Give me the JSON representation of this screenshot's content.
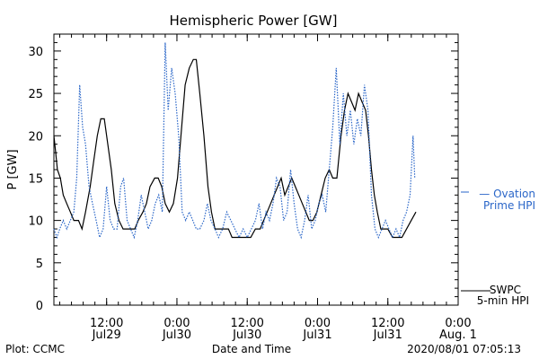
{
  "chart_data": {
    "type": "line",
    "title": "Hemispheric Power [GW]",
    "xlabel": "Date and Time",
    "ylabel": "P [GW]",
    "ylim": [
      0,
      32
    ],
    "xlim_hours": [
      0,
      69
    ],
    "yticks": [
      0,
      5,
      10,
      15,
      20,
      25,
      30
    ],
    "xticks": [
      {
        "t": 9,
        "top": "12:00",
        "bottom": "Jul29"
      },
      {
        "t": 21,
        "top": "0:00",
        "bottom": "Jul30"
      },
      {
        "t": 33,
        "top": "12:00",
        "bottom": "Jul30"
      },
      {
        "t": 45,
        "top": "0:00",
        "bottom": "Jul31"
      },
      {
        "t": 57,
        "top": "12:00",
        "bottom": "Jul31"
      },
      {
        "t": 69,
        "top": "0:00",
        "bottom": "Aug. 1"
      }
    ],
    "series": [
      {
        "name": "SWPC 5-min HPI",
        "color": "#000000",
        "style": "solid",
        "points": [
          [
            0,
            20
          ],
          [
            0.3,
            18
          ],
          [
            0.6,
            16
          ],
          [
            1.1,
            15
          ],
          [
            1.6,
            13
          ],
          [
            2.2,
            12
          ],
          [
            2.8,
            11
          ],
          [
            3.4,
            10
          ],
          [
            4.2,
            10
          ],
          [
            4.8,
            9
          ],
          [
            5.4,
            11
          ],
          [
            6.2,
            14
          ],
          [
            6.8,
            17
          ],
          [
            7.4,
            20
          ],
          [
            8,
            22
          ],
          [
            8.6,
            22
          ],
          [
            9.2,
            19
          ],
          [
            9.8,
            16
          ],
          [
            10.4,
            12
          ],
          [
            11.1,
            10
          ],
          [
            11.8,
            9
          ],
          [
            12.6,
            9
          ],
          [
            13.2,
            9
          ],
          [
            13.8,
            9
          ],
          [
            14.4,
            10
          ],
          [
            15.2,
            11
          ],
          [
            15.8,
            12
          ],
          [
            16.4,
            14
          ],
          [
            17.2,
            15
          ],
          [
            17.8,
            15
          ],
          [
            18.4,
            14
          ],
          [
            19,
            12
          ],
          [
            19.7,
            11
          ],
          [
            20.4,
            12
          ],
          [
            21.1,
            15
          ],
          [
            21.8,
            21
          ],
          [
            22.4,
            26
          ],
          [
            23.1,
            28
          ],
          [
            23.8,
            29
          ],
          [
            24.3,
            29
          ],
          [
            24.9,
            25
          ],
          [
            25.6,
            20
          ],
          [
            26.3,
            14
          ],
          [
            26.9,
            11
          ],
          [
            27.5,
            9
          ],
          [
            28.2,
            9
          ],
          [
            29,
            9
          ],
          [
            29.8,
            9
          ],
          [
            30.4,
            8
          ],
          [
            31.2,
            8
          ],
          [
            32,
            8
          ],
          [
            32.8,
            8
          ],
          [
            33.6,
            8
          ],
          [
            34.4,
            9
          ],
          [
            35.2,
            9
          ],
          [
            35.8,
            10
          ],
          [
            36.4,
            11
          ],
          [
            37,
            12
          ],
          [
            37.6,
            13
          ],
          [
            38.2,
            14
          ],
          [
            38.8,
            15
          ],
          [
            39.4,
            13
          ],
          [
            40,
            14
          ],
          [
            40.6,
            15
          ],
          [
            41.2,
            14
          ],
          [
            41.8,
            13
          ],
          [
            42.4,
            12
          ],
          [
            43,
            11
          ],
          [
            43.6,
            10
          ],
          [
            44.2,
            10
          ],
          [
            44.9,
            11
          ],
          [
            45.6,
            13
          ],
          [
            46.3,
            15
          ],
          [
            47,
            16
          ],
          [
            47.6,
            15
          ],
          [
            48.3,
            15
          ],
          [
            49,
            20
          ],
          [
            49.6,
            23
          ],
          [
            50.2,
            25
          ],
          [
            50.8,
            24
          ],
          [
            51.4,
            23
          ],
          [
            52,
            25
          ],
          [
            52.6,
            24
          ],
          [
            53.2,
            23
          ],
          [
            53.7,
            20
          ],
          [
            54.2,
            16
          ],
          [
            54.7,
            13
          ],
          [
            55.2,
            11
          ],
          [
            55.8,
            9
          ],
          [
            56.4,
            9
          ],
          [
            57,
            9
          ],
          [
            57.8,
            8
          ],
          [
            58.6,
            8
          ],
          [
            59.4,
            8
          ],
          [
            60.2,
            9
          ],
          [
            61,
            10
          ],
          [
            61.8,
            11
          ]
        ]
      },
      {
        "name": "Ovation Prime HPI",
        "color": "#2a66c8",
        "style": "dotted",
        "points": [
          [
            0,
            9
          ],
          [
            0.5,
            8
          ],
          [
            1,
            9
          ],
          [
            1.6,
            10
          ],
          [
            2.2,
            9
          ],
          [
            2.8,
            10
          ],
          [
            3.4,
            11
          ],
          [
            3.9,
            15
          ],
          [
            4.4,
            26
          ],
          [
            4.9,
            21
          ],
          [
            5.4,
            19
          ],
          [
            6,
            14
          ],
          [
            6.6,
            12
          ],
          [
            7.2,
            10
          ],
          [
            7.8,
            8
          ],
          [
            8.4,
            9
          ],
          [
            9,
            14
          ],
          [
            9.6,
            10
          ],
          [
            10.2,
            9
          ],
          [
            10.8,
            9
          ],
          [
            11.4,
            14
          ],
          [
            11.9,
            15
          ],
          [
            12.5,
            10
          ],
          [
            13.1,
            9
          ],
          [
            13.7,
            8
          ],
          [
            14.3,
            10
          ],
          [
            14.9,
            13
          ],
          [
            15.5,
            11
          ],
          [
            16.1,
            9
          ],
          [
            16.7,
            10
          ],
          [
            17.3,
            12
          ],
          [
            17.9,
            13
          ],
          [
            18.5,
            11
          ],
          [
            19,
            31
          ],
          [
            19.5,
            23
          ],
          [
            20.1,
            28
          ],
          [
            20.7,
            25
          ],
          [
            21.3,
            20
          ],
          [
            21.9,
            11
          ],
          [
            22.5,
            10
          ],
          [
            23.1,
            11
          ],
          [
            23.7,
            10
          ],
          [
            24.3,
            9
          ],
          [
            24.9,
            9
          ],
          [
            25.6,
            10
          ],
          [
            26.2,
            12
          ],
          [
            26.8,
            10
          ],
          [
            27.5,
            9
          ],
          [
            28.1,
            8
          ],
          [
            28.8,
            9
          ],
          [
            29.5,
            11
          ],
          [
            30.2,
            10
          ],
          [
            30.9,
            9
          ],
          [
            31.6,
            8
          ],
          [
            32.3,
            9
          ],
          [
            33,
            8
          ],
          [
            33.7,
            9
          ],
          [
            34.4,
            10
          ],
          [
            35,
            12
          ],
          [
            35.6,
            9
          ],
          [
            36.2,
            11
          ],
          [
            36.8,
            10
          ],
          [
            37.4,
            12
          ],
          [
            38,
            15
          ],
          [
            38.6,
            14
          ],
          [
            39.2,
            10
          ],
          [
            39.8,
            11
          ],
          [
            40.4,
            16
          ],
          [
            41,
            12
          ],
          [
            41.6,
            9
          ],
          [
            42.2,
            8
          ],
          [
            42.8,
            10
          ],
          [
            43.4,
            13
          ],
          [
            44,
            9
          ],
          [
            44.6,
            10
          ],
          [
            45.2,
            12
          ],
          [
            45.8,
            13
          ],
          [
            46.4,
            11
          ],
          [
            47,
            16
          ],
          [
            47.6,
            21
          ],
          [
            48.2,
            28
          ],
          [
            48.8,
            19
          ],
          [
            49.4,
            25
          ],
          [
            50,
            20
          ],
          [
            50.6,
            23
          ],
          [
            51.2,
            19
          ],
          [
            51.8,
            22
          ],
          [
            52.4,
            20
          ],
          [
            53,
            26
          ],
          [
            53.6,
            23
          ],
          [
            54.2,
            13
          ],
          [
            54.8,
            9
          ],
          [
            55.4,
            8
          ],
          [
            56,
            9
          ],
          [
            56.6,
            10
          ],
          [
            57.2,
            9
          ],
          [
            57.8,
            8
          ],
          [
            58.4,
            9
          ],
          [
            59,
            8
          ],
          [
            59.6,
            10
          ],
          [
            60.2,
            11
          ],
          [
            60.8,
            13
          ],
          [
            61.3,
            20
          ],
          [
            61.6,
            15
          ]
        ]
      }
    ],
    "legend": [
      {
        "line1": "SWPC",
        "line2": "5-min HPI",
        "color": "#000000"
      },
      {
        "line1": "— Ovation",
        "line2": "Prime HPI",
        "color": "#2a66c8"
      }
    ],
    "grid": false
  },
  "footer": {
    "left": "Plot: CCMC",
    "timestamp": "2020/08/01 07:05:13"
  }
}
